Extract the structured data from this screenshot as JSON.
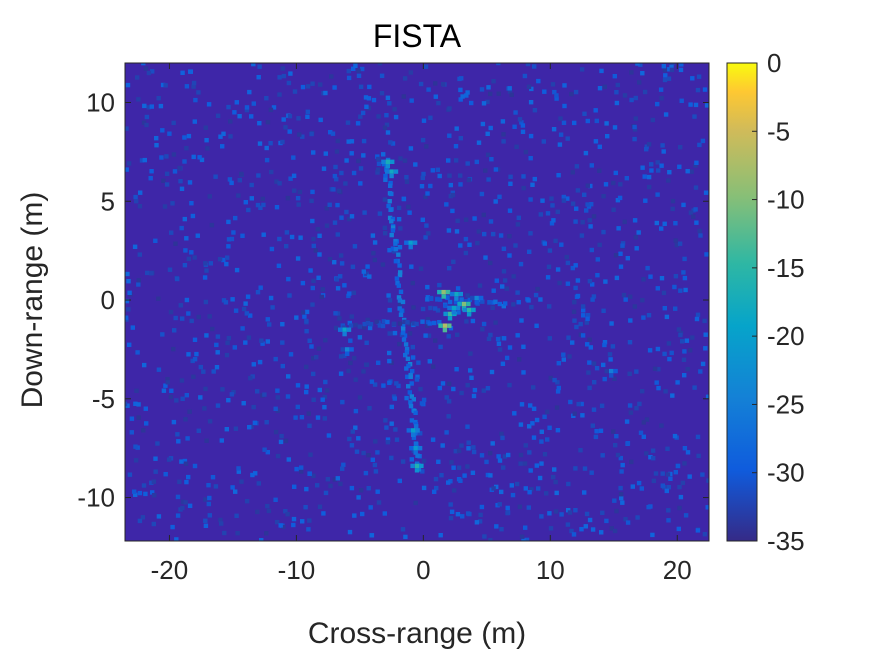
{
  "chart_data": {
    "type": "heatmap",
    "title": "FISTA",
    "xlabel": "Cross-range (m)",
    "ylabel": "Down-range (m)",
    "xlim": [
      -23.5,
      22.5
    ],
    "ylim": [
      -12.2,
      12
    ],
    "x_ticks": [
      -20,
      -10,
      0,
      10,
      20
    ],
    "x_tick_labels": [
      "-20",
      "-10",
      "0",
      "10",
      "20"
    ],
    "y_ticks": [
      -10,
      -5,
      0,
      5,
      10
    ],
    "y_tick_labels": [
      "-10",
      "-5",
      "0",
      "5",
      "10"
    ],
    "colorbar": {
      "colormap": "parula",
      "range": [
        -35,
        0
      ],
      "ticks": [
        0,
        -5,
        -10,
        -15,
        -20,
        -25,
        -30,
        -35
      ],
      "tick_labels": [
        "0",
        "-5",
        "-10",
        "-15",
        "-20",
        "-25",
        "-30",
        "-35"
      ]
    },
    "background_level": -35,
    "grid": false,
    "features": [
      {
        "type": "line",
        "from": [
          -3,
          7.3
        ],
        "to": [
          -0.3,
          -8.6
        ],
        "level": -27
      },
      {
        "type": "line",
        "from": [
          -6.8,
          -1.3
        ],
        "to": [
          1.2,
          -1.1
        ],
        "level": -31
      },
      {
        "type": "line",
        "from": [
          0.2,
          0.1
        ],
        "to": [
          6.5,
          -0.2
        ],
        "level": -30
      },
      {
        "type": "point",
        "x": -2.8,
        "y": 7.0,
        "level": -17
      },
      {
        "type": "point",
        "x": -2.5,
        "y": 6.5,
        "level": -18
      },
      {
        "type": "point",
        "x": -1.0,
        "y": 2.9,
        "level": -20
      },
      {
        "type": "point",
        "x": -6.2,
        "y": -1.5,
        "level": -19
      },
      {
        "type": "point",
        "x": -6.0,
        "y": -2.5,
        "level": -24
      },
      {
        "type": "point",
        "x": -0.8,
        "y": -6.6,
        "level": -20
      },
      {
        "type": "point",
        "x": -0.6,
        "y": -7.5,
        "level": -21
      },
      {
        "type": "point",
        "x": -0.5,
        "y": -8.4,
        "level": -16
      },
      {
        "type": "point",
        "x": 1.6,
        "y": 0.4,
        "level": -9
      },
      {
        "type": "point",
        "x": 1.7,
        "y": -1.3,
        "level": -7
      },
      {
        "type": "point",
        "x": 2.1,
        "y": -0.7,
        "level": -14
      },
      {
        "type": "point",
        "x": 2.6,
        "y": 0.3,
        "level": -18
      },
      {
        "type": "point",
        "x": 3.2,
        "y": -0.2,
        "level": -10
      },
      {
        "type": "point",
        "x": 3.6,
        "y": -0.5,
        "level": -15
      },
      {
        "type": "point",
        "x": 2.4,
        "y": -0.4,
        "level": -19
      },
      {
        "type": "point",
        "x": 4.2,
        "y": 0.1,
        "level": -24
      },
      {
        "type": "point",
        "x": 14.8,
        "y": -3.6,
        "level": -25
      }
    ]
  }
}
